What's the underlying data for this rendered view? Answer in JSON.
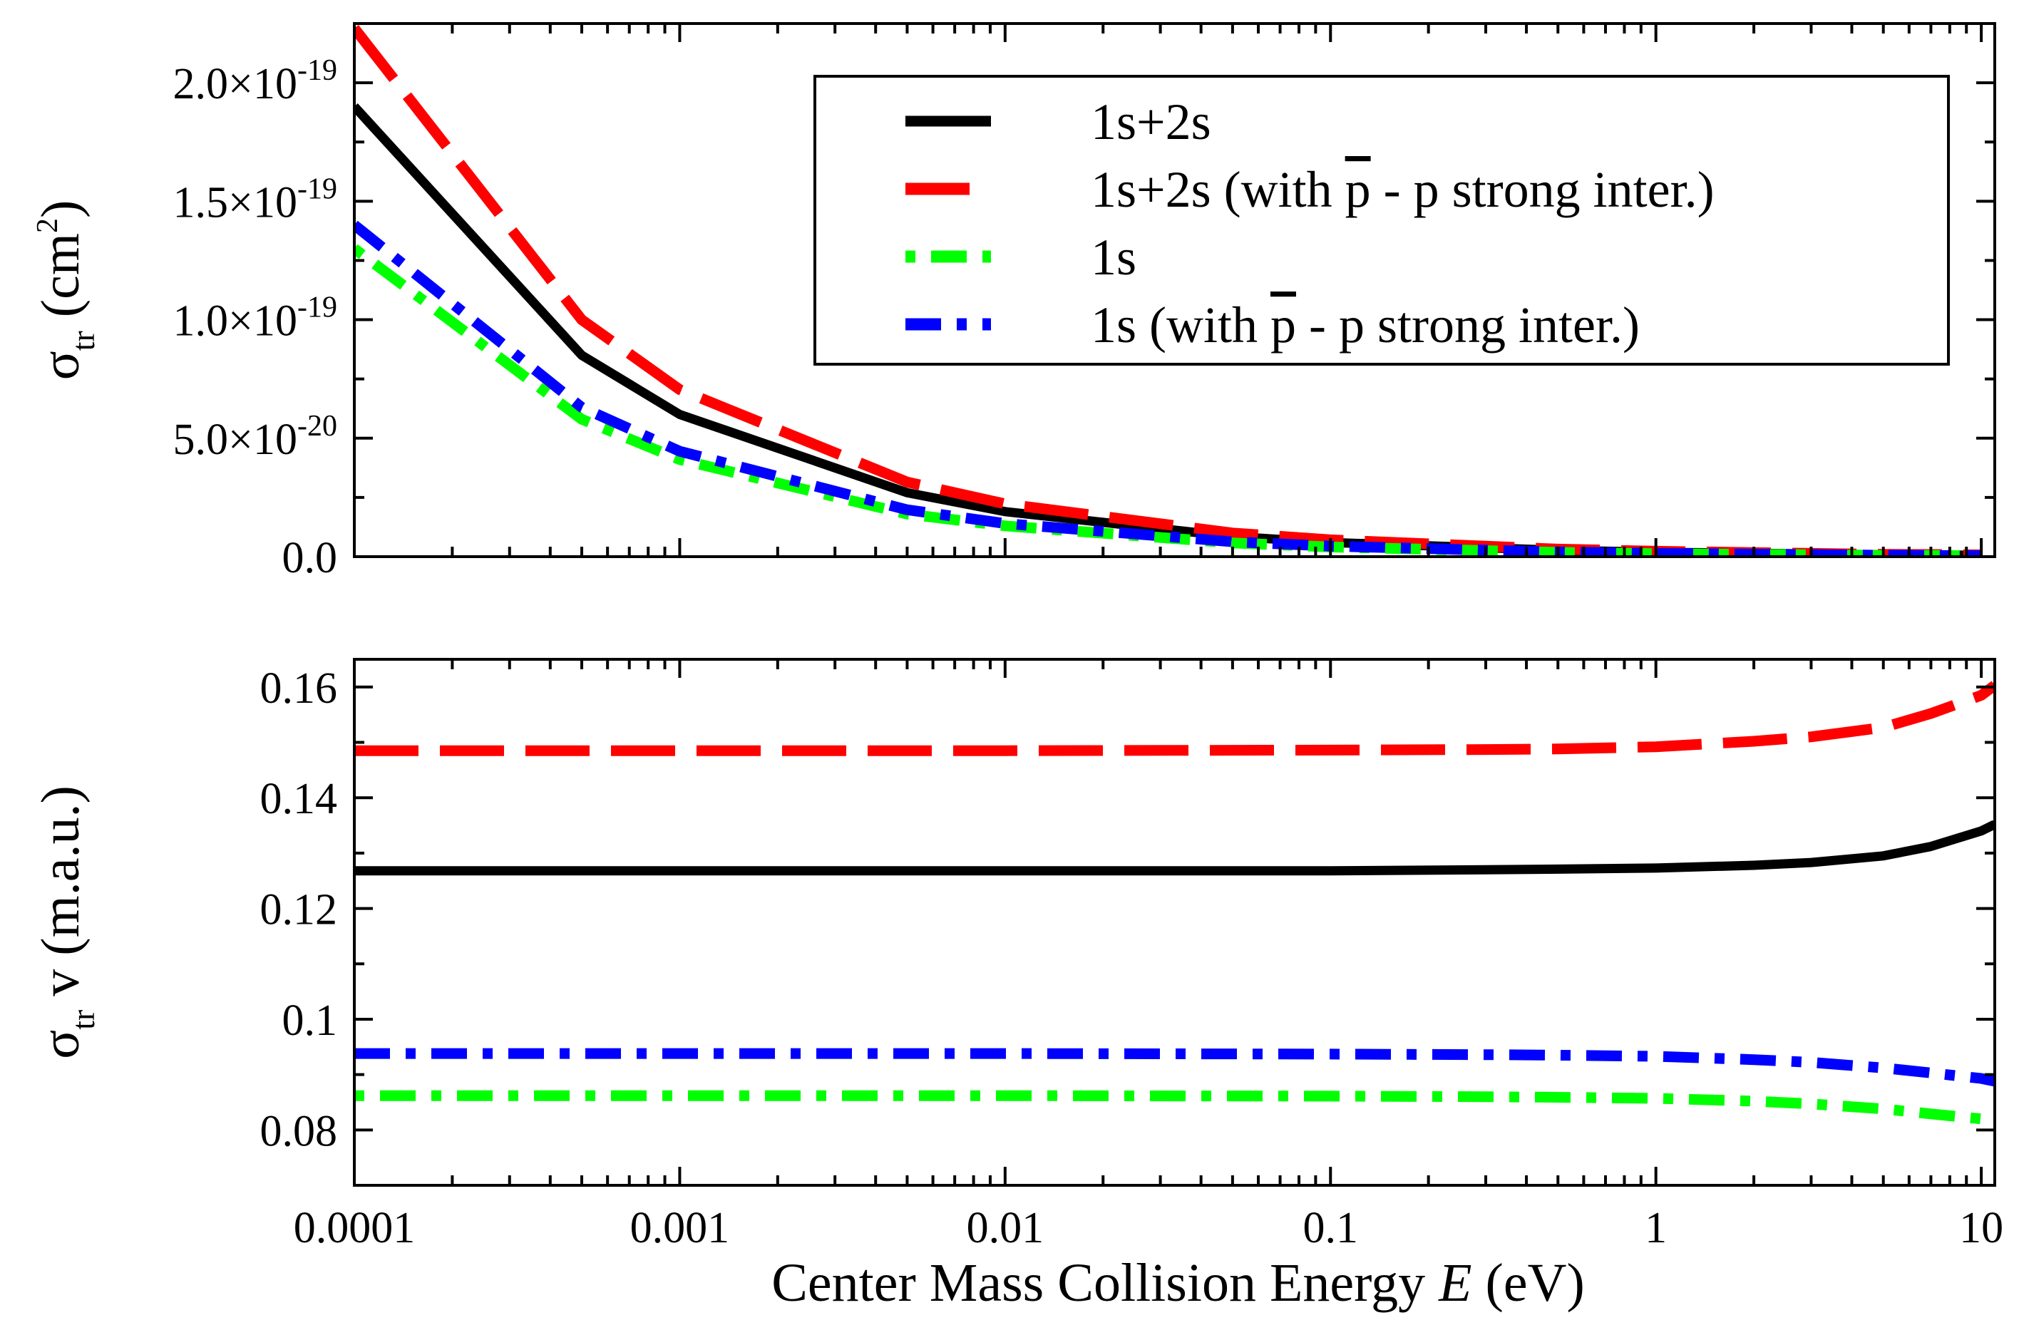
{
  "chart_data": [
    {
      "type": "line",
      "panel": "top",
      "xscale": "log",
      "xlim": [
        0.0001,
        11
      ],
      "ylim": [
        0,
        2.25e-19
      ],
      "ylabel": "σ_tr (cm²)",
      "ylabel_parts": {
        "symbol": "σ",
        "sub": "tr",
        "unit_open": " (cm",
        "sup": "2",
        "unit_close": ")"
      },
      "yticks": [
        {
          "value": 0,
          "mant": "0.0",
          "exp": ""
        },
        {
          "value": 5e-20,
          "mant": "5.0×10",
          "exp": "-20"
        },
        {
          "value": 1e-19,
          "mant": "1.0×10",
          "exp": "-19"
        },
        {
          "value": 1.5e-19,
          "mant": "1.5×10",
          "exp": "-19"
        },
        {
          "value": 2e-19,
          "mant": "2.0×10",
          "exp": "-19"
        }
      ],
      "legend": [
        {
          "label": "1s+2s",
          "series": 0
        },
        {
          "label_pre": "1s+2s (with ",
          "bar": "p",
          "label_post": " - p strong inter.)",
          "series": 1
        },
        {
          "label": "1s",
          "series": 2
        },
        {
          "label_pre": "1s (with ",
          "bar": "p",
          "label_post": " - p strong inter.)",
          "series": 3
        }
      ],
      "series": [
        {
          "name": "1s+2s",
          "color": "#000000",
          "x": [
            0.0001,
            0.0005,
            0.001,
            0.005,
            0.01,
            0.05,
            0.1,
            0.5,
            1,
            5,
            10
          ],
          "y": [
            1.9e-19,
            8.5e-20,
            6e-20,
            2.7e-20,
            1.9e-20,
            8.5e-21,
            6e-21,
            2.7e-21,
            1.9e-21,
            8.5e-22,
            6e-22
          ]
        },
        {
          "name": "1s+2s (with p̄ - p strong inter.)",
          "color": "#ff0000",
          "x": [
            0.0001,
            0.0005,
            0.001,
            0.005,
            0.01,
            0.05,
            0.1,
            0.5,
            1,
            5,
            10
          ],
          "y": [
            2.23e-19,
            1e-19,
            7.05e-20,
            3.15e-20,
            2.23e-20,
            1e-20,
            7.1e-21,
            3.2e-21,
            2.3e-21,
            1e-21,
            7.5e-22
          ]
        },
        {
          "name": "1s",
          "color": "#00ff00",
          "x": [
            0.0001,
            0.0005,
            0.001,
            0.005,
            0.01,
            0.05,
            0.1,
            0.5,
            1,
            5,
            10
          ],
          "y": [
            1.3e-19,
            5.8e-20,
            4.1e-20,
            1.8e-20,
            1.3e-20,
            5.8e-21,
            4.1e-21,
            1.8e-21,
            1.25e-21,
            5.5e-22,
            3.8e-22
          ]
        },
        {
          "name": "1s (with p̄ - p strong inter.)",
          "color": "#0000ff",
          "x": [
            0.0001,
            0.0005,
            0.001,
            0.005,
            0.01,
            0.05,
            0.1,
            0.5,
            1,
            5,
            10
          ],
          "y": [
            1.4e-19,
            6.3e-20,
            4.45e-20,
            1.98e-20,
            1.4e-20,
            6.3e-21,
            4.45e-21,
            1.98e-21,
            1.4e-21,
            6.1e-22,
            4.2e-22
          ]
        }
      ]
    },
    {
      "type": "line",
      "panel": "bottom",
      "xscale": "log",
      "xlim": [
        0.0001,
        11
      ],
      "ylim": [
        0.07,
        0.165
      ],
      "ylabel": "σ_tr v (m.a.u.)",
      "ylabel_parts": {
        "symbol": "σ",
        "sub": "tr",
        "rest": " v (m.a.u.)"
      },
      "xlabel": "Center Mass Collision Energy  E (eV)",
      "xlabel_parts": {
        "pre": "Center Mass Collision Energy  ",
        "italic": "E",
        "post": " (eV)"
      },
      "xticks": [
        {
          "value": 0.0001,
          "label": "0.0001"
        },
        {
          "value": 0.001,
          "label": "0.001"
        },
        {
          "value": 0.01,
          "label": "0.01"
        },
        {
          "value": 0.1,
          "label": "0.1"
        },
        {
          "value": 1,
          "label": "1"
        },
        {
          "value": 10,
          "label": "10"
        }
      ],
      "yticks": [
        {
          "value": 0.08,
          "label": "0.08"
        },
        {
          "value": 0.1,
          "label": "0.1"
        },
        {
          "value": 0.12,
          "label": "0.12"
        },
        {
          "value": 0.14,
          "label": "0.14"
        },
        {
          "value": 0.16,
          "label": "0.16"
        }
      ],
      "series": [
        {
          "name": "1s+2s",
          "color": "#000000",
          "x": [
            0.0001,
            0.001,
            0.01,
            0.1,
            0.3,
            0.5,
            1,
            2,
            3,
            5,
            7,
            10,
            11
          ],
          "y": [
            0.1268,
            0.1268,
            0.1268,
            0.1268,
            0.127,
            0.1271,
            0.1273,
            0.1278,
            0.1283,
            0.1295,
            0.1312,
            0.134,
            0.1352
          ]
        },
        {
          "name": "1s+2s (with p̄ - p strong inter.)",
          "color": "#ff0000",
          "x": [
            0.0001,
            0.001,
            0.01,
            0.1,
            0.3,
            0.5,
            1,
            2,
            3,
            5,
            7,
            10,
            11
          ],
          "y": [
            0.1485,
            0.1485,
            0.1485,
            0.1486,
            0.1487,
            0.1488,
            0.1492,
            0.1502,
            0.151,
            0.1527,
            0.1552,
            0.1585,
            0.1603
          ]
        },
        {
          "name": "1s",
          "color": "#00ff00",
          "x": [
            0.0001,
            0.001,
            0.01,
            0.1,
            0.3,
            0.5,
            1,
            2,
            3,
            5,
            7,
            10,
            11
          ],
          "y": [
            0.0862,
            0.0862,
            0.0862,
            0.0861,
            0.086,
            0.0859,
            0.0857,
            0.0852,
            0.0847,
            0.0838,
            0.0829,
            0.082,
            0.0815
          ]
        },
        {
          "name": "1s (with p̄ - p strong inter.)",
          "color": "#0000ff",
          "x": [
            0.0001,
            0.001,
            0.01,
            0.1,
            0.3,
            0.5,
            1,
            2,
            3,
            5,
            7,
            10,
            11
          ],
          "y": [
            0.0938,
            0.0938,
            0.0938,
            0.0937,
            0.0936,
            0.0935,
            0.0933,
            0.0927,
            0.0922,
            0.0912,
            0.0903,
            0.0893,
            0.0888
          ]
        }
      ]
    }
  ]
}
